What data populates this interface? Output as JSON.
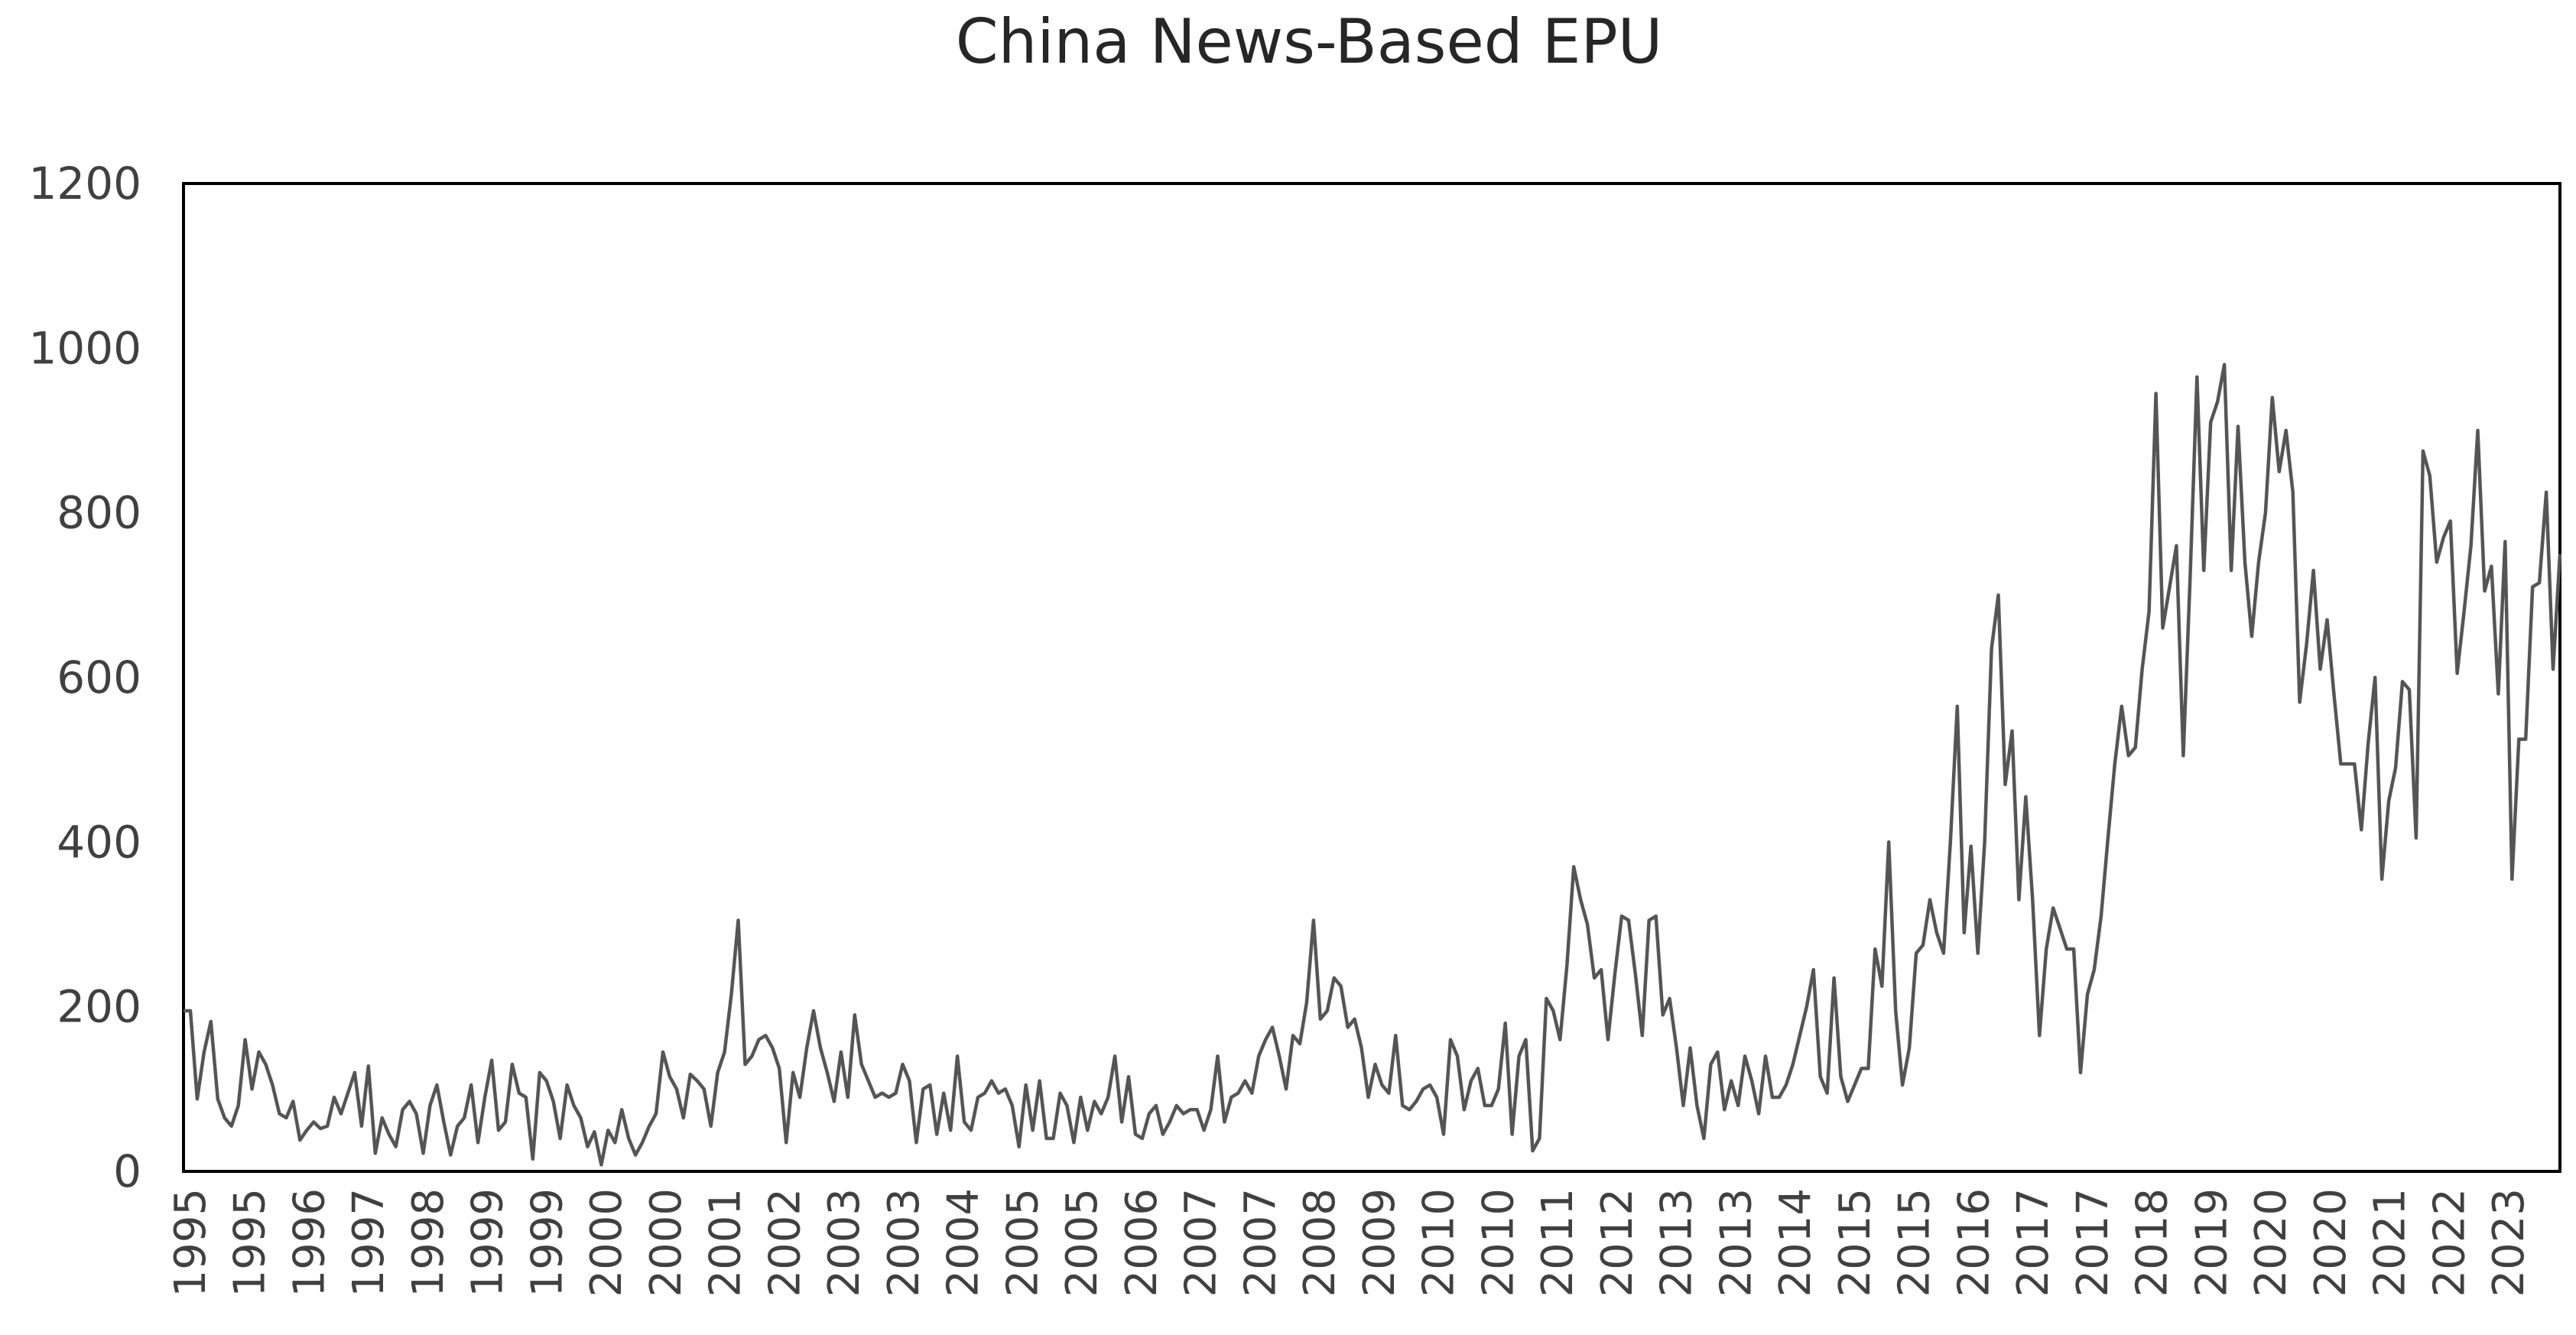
{
  "chart_data": {
    "type": "line",
    "title": "China News-Based EPU",
    "xlabel": "",
    "ylabel": "",
    "ylim": [
      0,
      1200
    ],
    "y_ticks": [
      "0",
      "200",
      "400",
      "600",
      "800",
      "1000",
      "1200"
    ],
    "x_tick_labels": [
      "1995",
      "1995",
      "1996",
      "1997",
      "1998",
      "1999",
      "1999",
      "2000",
      "2000",
      "2001",
      "2002",
      "2003",
      "2003",
      "2004",
      "2005",
      "2005",
      "2006",
      "2007",
      "2007",
      "2008",
      "2009",
      "2010",
      "2010",
      "2011",
      "2012",
      "2013",
      "2013",
      "2014",
      "2015",
      "2015",
      "2016",
      "2017",
      "2017",
      "2018",
      "2019",
      "2020",
      "2020",
      "2021",
      "2022",
      "2023"
    ],
    "grid": false,
    "legend": "none",
    "colors": {
      "line": "#555555",
      "axis": "#000000",
      "text": "#404040"
    },
    "series": [
      {
        "values": [
          195,
          195,
          88,
          145,
          182,
          88,
          65,
          55,
          80,
          160,
          100,
          145,
          130,
          105,
          70,
          65,
          85,
          38,
          50,
          60,
          52,
          55,
          90,
          70,
          95,
          120,
          55,
          128,
          22,
          65,
          45,
          30,
          75,
          85,
          70,
          22,
          80,
          105,
          60,
          20,
          55,
          65,
          105,
          35,
          90,
          135,
          50,
          60,
          130,
          95,
          90,
          15,
          120,
          110,
          85,
          40,
          105,
          80,
          65,
          30,
          48,
          8,
          50,
          35,
          75,
          40,
          20,
          35,
          55,
          70,
          145,
          115,
          100,
          65,
          118,
          110,
          100,
          55,
          120,
          145,
          215,
          305,
          130,
          140,
          160,
          165,
          150,
          125,
          35,
          120,
          90,
          150,
          195,
          150,
          120,
          85,
          145,
          90,
          190,
          130,
          110,
          90,
          95,
          90,
          95,
          130,
          110,
          35,
          100,
          105,
          45,
          95,
          50,
          140,
          60,
          50,
          90,
          95,
          110,
          95,
          100,
          80,
          30,
          105,
          50,
          110,
          40,
          40,
          95,
          80,
          35,
          90,
          50,
          85,
          70,
          90,
          140,
          60,
          115,
          45,
          40,
          70,
          80,
          45,
          60,
          80,
          70,
          75,
          75,
          50,
          75,
          140,
          60,
          90,
          95,
          110,
          95,
          140,
          160,
          175,
          140,
          100,
          165,
          155,
          205,
          305,
          185,
          195,
          235,
          225,
          175,
          185,
          150,
          90,
          130,
          105,
          95,
          165,
          80,
          75,
          85,
          100,
          105,
          90,
          45,
          160,
          140,
          75,
          110,
          125,
          80,
          80,
          100,
          180,
          45,
          140,
          160,
          25,
          40,
          210,
          195,
          160,
          250,
          370,
          330,
          300,
          235,
          245,
          160,
          240,
          310,
          305,
          240,
          165,
          305,
          310,
          190,
          210,
          150,
          80,
          150,
          80,
          40,
          130,
          145,
          75,
          110,
          80,
          140,
          110,
          70,
          140,
          90,
          90,
          105,
          130,
          165,
          200,
          245,
          115,
          95,
          235,
          115,
          85,
          105,
          125,
          125,
          270,
          225,
          400,
          195,
          105,
          150,
          265,
          275,
          330,
          290,
          265,
          400,
          565,
          290,
          395,
          265,
          400,
          635,
          700,
          470,
          535,
          330,
          455,
          330,
          165,
          270,
          320,
          295,
          270,
          270,
          120,
          215,
          245,
          310,
          405,
          495,
          565,
          505,
          515,
          610,
          680,
          945,
          660,
          710,
          760,
          505,
          720,
          965,
          730,
          910,
          935,
          980,
          730,
          905,
          740,
          650,
          740,
          800,
          940,
          850,
          900,
          825,
          570,
          640,
          730,
          610,
          670,
          580,
          495,
          495,
          495,
          415,
          520,
          600,
          355,
          450,
          490,
          595,
          585,
          405,
          875,
          845,
          740,
          770,
          790,
          605,
          680,
          760,
          900,
          705,
          735,
          580,
          765,
          355,
          525,
          525,
          710,
          715,
          825,
          610,
          750
        ]
      }
    ]
  }
}
